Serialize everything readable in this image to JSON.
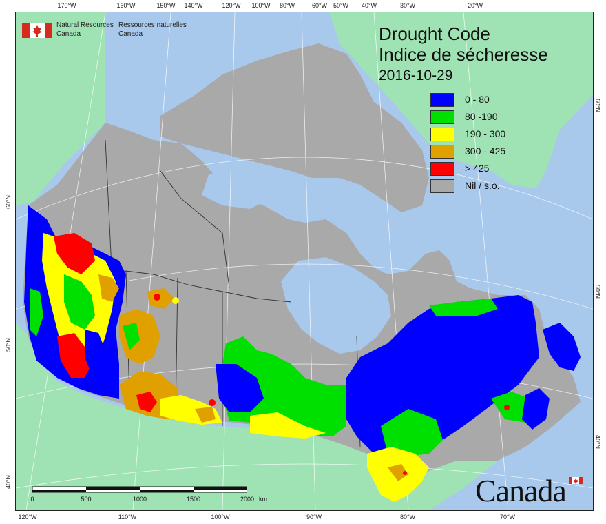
{
  "agency": {
    "name_en_line1": "Natural Resources",
    "name_en_line2": "Canada",
    "name_fr_line1": "Ressources naturelles",
    "name_fr_line2": "Canada"
  },
  "title": {
    "en": "Drought Code",
    "fr": "Indice de sécheresse",
    "date": "2016-10-29"
  },
  "legend": [
    {
      "label": "0 - 80",
      "color": "#0000ff"
    },
    {
      "label": "80 -190",
      "color": "#00e000"
    },
    {
      "label": "190 - 300",
      "color": "#ffff00"
    },
    {
      "label": "300 - 425",
      "color": "#e0a000"
    },
    {
      "label": "> 425",
      "color": "#ff0000"
    },
    {
      "label": "Nil / s.o.",
      "color": "#a9a9a9"
    }
  ],
  "colors": {
    "ocean": "#a8c8ec",
    "foreign_land": "#9fe3b4",
    "canada_nil": "#a9a9a9",
    "graticule": "#ffffff",
    "borders": "#333333"
  },
  "graticule_labels": {
    "top": [
      "170°W",
      "160°W",
      "150°W",
      "140°W",
      "120°W",
      "100°W",
      "80°W",
      "60°W",
      "50°W",
      "40°W",
      "30°W",
      "20°W"
    ],
    "bottom": [
      "120°W",
      "110°W",
      "100°W",
      "90°W",
      "80°W",
      "70°W"
    ],
    "left": [
      "60°N",
      "50°N",
      "40°N"
    ],
    "right": [
      "60°N",
      "50°N",
      "40°N"
    ]
  },
  "scale_bar": {
    "labels": [
      "0",
      "500",
      "1000",
      "1500",
      "2000"
    ],
    "unit": "km"
  },
  "wordmark": "Canada"
}
